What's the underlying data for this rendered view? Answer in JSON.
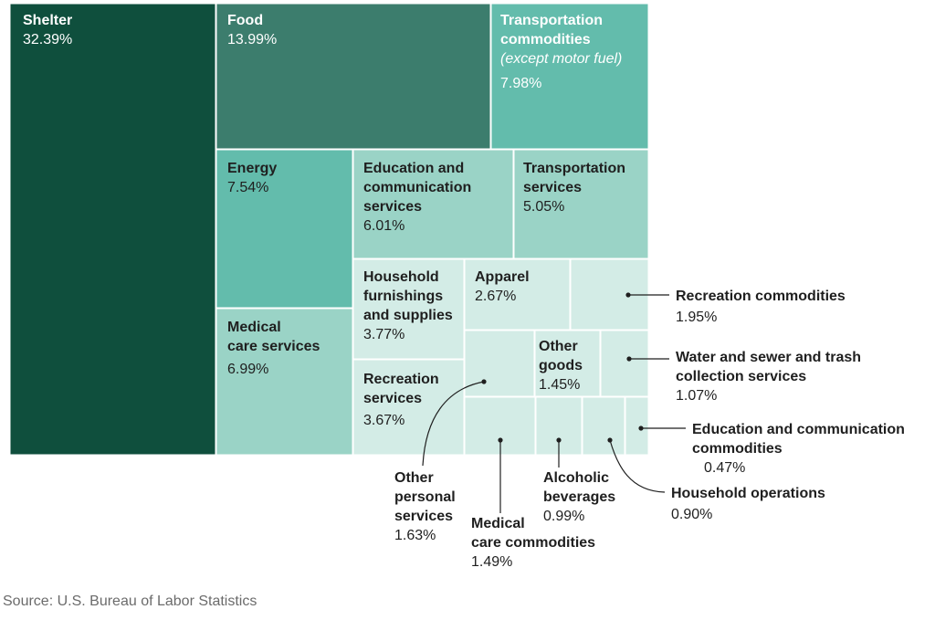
{
  "chart_data": {
    "type": "treemap",
    "colors": {
      "Shelter": "#0f4f3d",
      "Food": "#3c7d6d",
      "Transportation commodities": "#63bcac",
      "Energy": "#63bcac",
      "Medical care services": "#9ad3c6",
      "Education and communication services": "#9ad3c6",
      "Transportation services": "#9ad3c6",
      "small": "#d3ece6"
    },
    "items": [
      {
        "name": "Shelter",
        "value": 32.39,
        "label": "32.39%"
      },
      {
        "name": "Food",
        "value": 13.99,
        "label": "13.99%"
      },
      {
        "name": "Transportation commodities",
        "note": "(except motor fuel)",
        "value": 7.98,
        "label": "7.98%"
      },
      {
        "name": "Energy",
        "value": 7.54,
        "label": "7.54%"
      },
      {
        "name": "Medical care services",
        "value": 6.99,
        "label": "6.99%"
      },
      {
        "name": "Education and communication services",
        "value": 6.01,
        "label": "6.01%"
      },
      {
        "name": "Transportation services",
        "value": 5.05,
        "label": "5.05%"
      },
      {
        "name": "Household furnishings and supplies",
        "value": 3.77,
        "label": "3.77%"
      },
      {
        "name": "Recreation services",
        "value": 3.67,
        "label": "3.67%"
      },
      {
        "name": "Apparel",
        "value": 2.67,
        "label": "2.67%"
      },
      {
        "name": "Recreation commodities",
        "value": 1.95,
        "label": "1.95%"
      },
      {
        "name": "Other personal services",
        "value": 1.63,
        "label": "1.63%"
      },
      {
        "name": "Medical care commodities",
        "value": 1.49,
        "label": "1.49%"
      },
      {
        "name": "Other goods",
        "value": 1.45,
        "label": "1.45%"
      },
      {
        "name": "Water and sewer and trash collection services",
        "value": 1.07,
        "label": "1.07%"
      },
      {
        "name": "Alcoholic beverages",
        "value": 0.99,
        "label": "0.99%"
      },
      {
        "name": "Household operations",
        "value": 0.9,
        "label": "0.90%"
      },
      {
        "name": "Education and communication commodities",
        "value": 0.47,
        "label": "0.47%"
      }
    ]
  },
  "labels": {
    "shelter": {
      "l1": "Shelter",
      "pct": "32.39%"
    },
    "food": {
      "l1": "Food",
      "pct": "13.99%"
    },
    "transcom": {
      "l1": "Transportation",
      "l2": "commodities",
      "note": "(except motor fuel)",
      "pct": "7.98%"
    },
    "energy": {
      "l1": "Energy",
      "pct": "7.54%"
    },
    "medserv": {
      "l1": "Medical",
      "l2": "care services",
      "pct": "6.99%"
    },
    "educserv": {
      "l1": "Education and",
      "l2": "communication",
      "l3": "services",
      "pct": "6.01%"
    },
    "transserv": {
      "l1": "Transportation",
      "l2": "services",
      "pct": "5.05%"
    },
    "household": {
      "l1": "Household",
      "l2": "furnishings",
      "l3": "and supplies",
      "pct": "3.77%"
    },
    "recserv": {
      "l1": "Recreation",
      "l2": "services",
      "pct": "3.67%"
    },
    "apparel": {
      "l1": "Apparel",
      "pct": "2.67%"
    },
    "othergoods": {
      "l1": "Other",
      "l2": "goods",
      "pct": "1.45%"
    },
    "reccom": {
      "l1": "Recreation commodities",
      "pct": "1.95%"
    },
    "water": {
      "l1": "Water and sewer and trash",
      "l2": "collection services",
      "pct": "1.07%"
    },
    "educcom": {
      "l1": "Education and communication",
      "l2": "commodities",
      "pct": "0.47%"
    },
    "householdops": {
      "l1": "Household operations",
      "pct": "0.90%"
    },
    "alcohol": {
      "l1": "Alcoholic",
      "l2": "beverages",
      "pct": "0.99%"
    },
    "medcom": {
      "l1": "Medical",
      "l2": "care commodities",
      "pct": "1.49%"
    },
    "otherpersonal": {
      "l1": "Other",
      "l2": "personal",
      "l3": "services",
      "pct": "1.63%"
    }
  },
  "source": "Source: U.S. Bureau of Labor Statistics"
}
